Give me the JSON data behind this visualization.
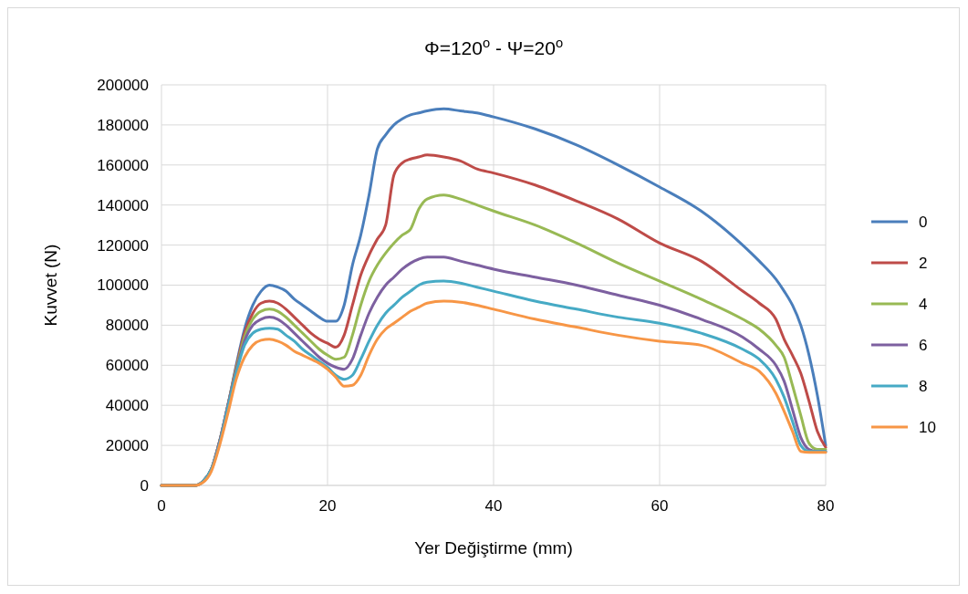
{
  "chart_data": {
    "type": "line",
    "title": "Φ=120$^{o}$ - Ψ=20$^{o}$",
    "xlabel": "Yer Değiştirme (mm)",
    "ylabel": "Kuvvet (N)",
    "x": [
      0,
      4,
      5,
      6,
      7,
      8,
      9,
      10,
      11,
      12,
      13,
      14,
      15,
      16,
      17,
      18,
      19,
      20,
      21,
      22,
      23,
      24,
      25,
      26,
      27,
      28,
      29,
      30,
      31,
      32,
      34,
      36,
      38,
      40,
      45,
      50,
      55,
      60,
      65,
      70,
      72,
      74,
      75,
      76,
      77,
      78,
      79,
      80
    ],
    "series": [
      {
        "name": "0",
        "color": "#4a7ebb",
        "values": [
          0,
          0,
          2000,
          8000,
          22000,
          40000,
          60000,
          78000,
          90000,
          97000,
          100000,
          99000,
          97000,
          93000,
          90000,
          87000,
          84000,
          82000,
          82000,
          90000,
          110000,
          125000,
          145000,
          168000,
          175000,
          180000,
          183000,
          185000,
          186000,
          187000,
          188000,
          187000,
          186000,
          184000,
          178000,
          170000,
          160000,
          149000,
          137000,
          120000,
          112000,
          103000,
          97000,
          90000,
          80000,
          65000,
          45000,
          20000
        ]
      },
      {
        "name": "2",
        "color": "#be4b48",
        "values": [
          0,
          0,
          2000,
          8000,
          22000,
          40000,
          59000,
          76000,
          86000,
          91000,
          92000,
          91000,
          88000,
          84000,
          80000,
          76000,
          73000,
          71000,
          69000,
          75000,
          90000,
          105000,
          115000,
          123000,
          130000,
          155000,
          161000,
          163000,
          164000,
          165000,
          164000,
          162000,
          158000,
          156000,
          150000,
          142000,
          133000,
          121000,
          112000,
          97000,
          91000,
          83000,
          73000,
          65000,
          56000,
          42000,
          27000,
          19000
        ]
      },
      {
        "name": "4",
        "color": "#98b954",
        "values": [
          0,
          0,
          2000,
          8000,
          22000,
          40000,
          58000,
          74000,
          83000,
          87000,
          88000,
          87000,
          84000,
          80000,
          76000,
          72000,
          68000,
          65000,
          63000,
          64000,
          75000,
          90000,
          102000,
          110000,
          116000,
          121000,
          125000,
          128000,
          138000,
          143000,
          145000,
          143000,
          140000,
          137000,
          130000,
          121000,
          111000,
          102000,
          93000,
          83000,
          78000,
          70000,
          64000,
          50000,
          35000,
          21000,
          18000,
          18000
        ]
      },
      {
        "name": "6",
        "color": "#7d60a0",
        "values": [
          0,
          0,
          2000,
          8000,
          22000,
          40000,
          57000,
          72000,
          80000,
          83000,
          84000,
          83000,
          80000,
          76000,
          72000,
          68000,
          64000,
          61000,
          59000,
          58000,
          63000,
          75000,
          86000,
          94000,
          100000,
          104000,
          108000,
          111000,
          113000,
          114000,
          114000,
          112000,
          110000,
          108000,
          104000,
          100000,
          95000,
          90000,
          83000,
          74000,
          68000,
          60000,
          52000,
          38000,
          24000,
          18000,
          17000,
          17000
        ]
      },
      {
        "name": "8",
        "color": "#46aac5",
        "values": [
          0,
          0,
          2000,
          8000,
          21000,
          39000,
          56000,
          70000,
          76000,
          78000,
          78500,
          78000,
          75000,
          72000,
          68000,
          65000,
          62000,
          59000,
          55000,
          53000,
          55000,
          63000,
          72000,
          80000,
          86000,
          90000,
          94000,
          97000,
          100000,
          101500,
          102000,
          101000,
          99000,
          97000,
          92000,
          88000,
          84000,
          81000,
          76000,
          68000,
          63000,
          53000,
          44000,
          32000,
          20000,
          17000,
          17000,
          17000
        ]
      },
      {
        "name": "10",
        "color": "#f79646",
        "values": [
          0,
          0,
          1500,
          7000,
          20000,
          36000,
          53000,
          64000,
          70000,
          72500,
          73000,
          72000,
          70000,
          67000,
          65000,
          63000,
          61000,
          58000,
          54000,
          49500,
          50000,
          55000,
          65000,
          73000,
          78000,
          81000,
          84000,
          87000,
          89000,
          91000,
          92000,
          91500,
          90000,
          88000,
          83000,
          79000,
          75000,
          72000,
          70000,
          61000,
          57000,
          46000,
          37000,
          27000,
          17000,
          16500,
          16500,
          16500
        ]
      }
    ],
    "xlim": [
      0,
      80
    ],
    "xticks": [
      0,
      20,
      40,
      60,
      80
    ],
    "ylim": [
      0,
      200000
    ],
    "yticks": [
      0,
      20000,
      40000,
      60000,
      80000,
      100000,
      120000,
      140000,
      160000,
      180000,
      200000
    ],
    "grid": true,
    "legend": "right",
    "marker": "none",
    "line_style": "solid"
  }
}
